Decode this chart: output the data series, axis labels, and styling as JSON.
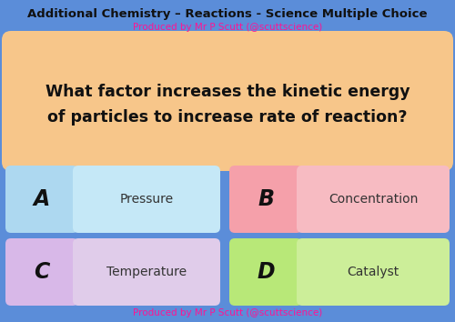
{
  "bg_color": "#5b8dd9",
  "title": "Additional Chemistry – Reactions - Science Multiple Choice",
  "subtitle": "Produced by Mr P Scutt (@scuttscience)",
  "subtitle_color": "#ff1493",
  "title_color": "#111111",
  "question_line1": "What factor increases the kinetic energy",
  "question_line2": "of particles to increase rate of reaction?",
  "question_box_color_left": "#f7c68a",
  "question_box_color_right": "#fad9b0",
  "answer_options": [
    {
      "letter": "A",
      "text": "Pressure",
      "letter_color": "#add8f0",
      "text_color": "#c5e8f7"
    },
    {
      "letter": "B",
      "text": "Concentration",
      "letter_color": "#f5a0aa",
      "text_color": "#f7bbc2"
    },
    {
      "letter": "C",
      "text": "Temperature",
      "letter_color": "#d8b8e8",
      "text_color": "#e0ccea"
    },
    {
      "letter": "D",
      "text": "Catalyst",
      "letter_color": "#b8e878",
      "text_color": "#ccee99"
    }
  ],
  "footer": "Produced by Mr P Scutt (@scuttscience)",
  "footer_color": "#ff1493",
  "title_fontsize": 9.5,
  "subtitle_fontsize": 7.5,
  "question_fontsize": 12.5,
  "letter_fontsize": 17,
  "answer_fontsize": 10,
  "footer_fontsize": 7.5
}
